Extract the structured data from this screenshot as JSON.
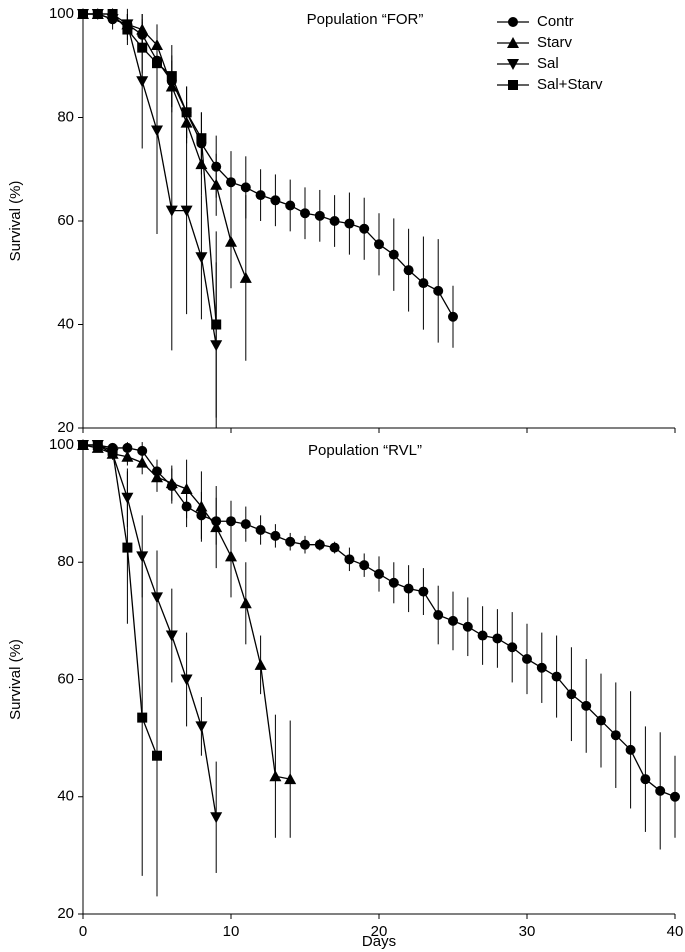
{
  "chart_data": [
    {
      "type": "line",
      "title": "Population “FOR”",
      "ylabel": "Survival (%)",
      "xlim": [
        0,
        40
      ],
      "xticks": [
        0,
        10,
        20,
        30,
        40
      ],
      "ylim": [
        20,
        100
      ],
      "yticks": [
        20,
        40,
        60,
        80,
        100
      ],
      "legend": "upper right",
      "series": [
        {
          "name": "Contr",
          "color": "#000000",
          "marker": "circle",
          "x": [
            0,
            1,
            2,
            3,
            4,
            5,
            6,
            7,
            8,
            9,
            10,
            11,
            12,
            13,
            14,
            15,
            16,
            17,
            18,
            19,
            20,
            21,
            22,
            23,
            24,
            25
          ],
          "values": [
            100,
            100,
            99,
            98,
            96,
            91,
            87,
            81,
            75,
            70.5,
            67.5,
            66.5,
            65,
            64,
            63,
            61.5,
            61,
            60,
            59.5,
            58.5,
            55.5,
            53.5,
            50.5,
            48,
            46.5,
            41.5
          ],
          "errors": [
            0,
            0,
            1,
            2,
            3,
            4,
            5,
            5,
            6,
            6,
            6,
            6,
            5,
            5,
            5,
            5,
            5,
            5,
            6,
            6,
            6,
            7,
            8,
            9,
            10,
            6
          ]
        },
        {
          "name": "Starv",
          "color": "#000000",
          "marker": "triangle-up",
          "x": [
            0,
            1,
            2,
            3,
            4,
            5,
            6,
            7,
            8,
            9,
            10,
            11
          ],
          "values": [
            100,
            100,
            100,
            98,
            97,
            94,
            86,
            79,
            71,
            67,
            56,
            49
          ],
          "errors": [
            0,
            0,
            0,
            2,
            3,
            4,
            5,
            4,
            6,
            6,
            9,
            16
          ]
        },
        {
          "name": "Sal",
          "color": "#000000",
          "marker": "triangle-down",
          "x": [
            0,
            1,
            2,
            3,
            4,
            5,
            6,
            7,
            8,
            9
          ],
          "values": [
            100,
            100,
            99,
            98,
            87,
            77.5,
            62,
            62,
            53,
            36
          ],
          "errors": [
            0,
            0,
            2,
            3,
            13,
            20,
            27,
            20,
            12,
            16
          ]
        },
        {
          "name": "Sal+Starv",
          "color": "#000000",
          "marker": "square",
          "x": [
            0,
            1,
            2,
            3,
            4,
            5,
            6,
            7,
            8,
            9
          ],
          "values": [
            100,
            100,
            100,
            97,
            93.5,
            90.5,
            88,
            81,
            76,
            40
          ],
          "errors": [
            0,
            0,
            0,
            3,
            5,
            6,
            6,
            5,
            5,
            18
          ]
        }
      ]
    },
    {
      "type": "line",
      "title": "Population “RVL”",
      "ylabel": "Survival (%)",
      "xlabel": "Days",
      "xlim": [
        0,
        40
      ],
      "xticks": [
        0,
        10,
        20,
        30,
        40
      ],
      "ylim": [
        20,
        100
      ],
      "yticks": [
        20,
        40,
        60,
        80,
        100
      ],
      "series": [
        {
          "color": "#000000",
          "marker": "circle",
          "x": [
            0,
            1,
            2,
            3,
            4,
            5,
            6,
            7,
            8,
            9,
            10,
            11,
            12,
            13,
            14,
            15,
            16,
            17,
            18,
            19,
            20,
            21,
            22,
            23,
            24,
            25,
            26,
            27,
            28,
            29,
            30,
            31,
            32,
            33,
            34,
            35,
            36,
            37,
            38,
            39,
            40
          ],
          "values": [
            100,
            100,
            99.5,
            99.5,
            99,
            95.5,
            93,
            89.5,
            88,
            87,
            87,
            86.5,
            85.5,
            84.5,
            83.5,
            83,
            83,
            82.5,
            80.5,
            79.5,
            78,
            76.5,
            75.5,
            75,
            71,
            70,
            69,
            67.5,
            67,
            65.5,
            63.5,
            62,
            60.5,
            57.5,
            55.5,
            53,
            50.5,
            48,
            43,
            41,
            40
          ],
          "errors": [
            0,
            0,
            0.5,
            1,
            1.5,
            2,
            3,
            3.5,
            4,
            4,
            3.5,
            3,
            2.5,
            2,
            1.5,
            1.5,
            1,
            1,
            2,
            2,
            3,
            3.5,
            4,
            4,
            5,
            5,
            5,
            5,
            5,
            6,
            6,
            6,
            7,
            8,
            8,
            8,
            9,
            10,
            9,
            10,
            7
          ]
        },
        {
          "color": "#000000",
          "marker": "triangle-up",
          "x": [
            0,
            1,
            2,
            3,
            4,
            5,
            6,
            7,
            8,
            9,
            10,
            11,
            12,
            13,
            14
          ],
          "values": [
            100,
            99.5,
            98.5,
            98,
            97,
            94.5,
            93.5,
            92.5,
            89.5,
            86,
            81,
            73,
            62.5,
            43.5,
            43
          ],
          "errors": [
            0,
            0.5,
            1,
            1.5,
            2,
            2.5,
            3,
            5,
            6,
            7,
            7,
            7,
            5,
            10.5,
            10
          ]
        },
        {
          "color": "#000000",
          "marker": "triangle-down",
          "x": [
            0,
            1,
            2,
            3,
            4,
            5,
            6,
            7,
            8,
            9
          ],
          "values": [
            100,
            100,
            98.5,
            91,
            81,
            74,
            67.5,
            60,
            52,
            36.5
          ],
          "errors": [
            0,
            0,
            1,
            5,
            7,
            8,
            8,
            8,
            5,
            9.5
          ]
        },
        {
          "color": "#000000",
          "marker": "square",
          "x": [
            0,
            1,
            2,
            3,
            4,
            5
          ],
          "values": [
            100,
            100,
            99,
            82.5,
            53.5,
            47
          ],
          "errors": [
            0,
            0,
            1,
            13,
            27,
            24
          ]
        }
      ]
    }
  ]
}
